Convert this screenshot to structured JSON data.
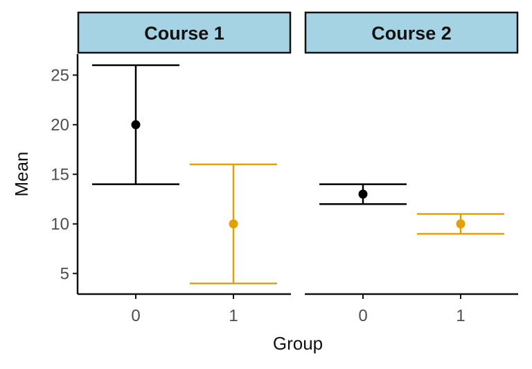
{
  "chart_data": {
    "type": "errorbar",
    "xlabel": "Group",
    "ylabel": "Mean",
    "ylim": [
      3,
      27
    ],
    "yticks": [
      5,
      10,
      15,
      20,
      25
    ],
    "categories": [
      "0",
      "1"
    ],
    "colors": {
      "0": "#000000",
      "1": "#e69f00"
    },
    "grid": false,
    "legend": "none",
    "panels": [
      {
        "title": "Course 1",
        "points": [
          {
            "group": "0",
            "mean": 20,
            "lower": 14,
            "upper": 26
          },
          {
            "group": "1",
            "mean": 10,
            "lower": 4,
            "upper": 16
          }
        ]
      },
      {
        "title": "Course 2",
        "points": [
          {
            "group": "0",
            "mean": 13,
            "lower": 12,
            "upper": 14
          },
          {
            "group": "1",
            "mean": 10,
            "lower": 9,
            "upper": 11
          }
        ]
      }
    ]
  }
}
